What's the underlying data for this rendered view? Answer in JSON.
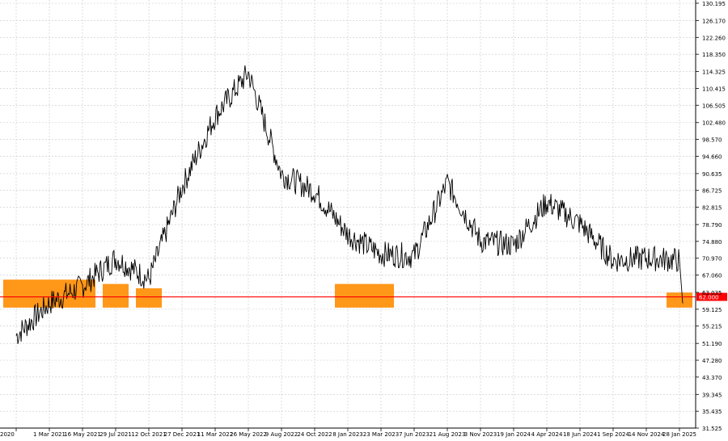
{
  "chart_data": {
    "type": "line",
    "style": "candlestick-price-chart",
    "grid": true,
    "ylim": [
      31.525,
      130.195
    ],
    "yticks": [
      "130.195",
      "126.170",
      "122.260",
      "118.350",
      "114.325",
      "110.415",
      "106.505",
      "102.480",
      "98.570",
      "94.660",
      "90.635",
      "86.725",
      "82.815",
      "78.790",
      "74.880",
      "70.970",
      "67.060",
      "63.035",
      "59.125",
      "55.215",
      "51.190",
      "47.280",
      "43.370",
      "39.345",
      "35.435",
      "31.525"
    ],
    "xticks": [
      "2020",
      "1 Mar 2021",
      "16 May 2021",
      "29 Jul 2021",
      "12 Oct 2021",
      "27 Dec 2021",
      "11 Mar 2022",
      "26 May 2022",
      "9 Aug 2022",
      "24 Oct 2022",
      "8 Jan 2023",
      "23 Mar 2023",
      "7 Jun 2023",
      "21 Aug 2023",
      "3 Nov 2023",
      "19 Jan 2024",
      "4 Apr 2024",
      "18 Jun 2024",
      "1 Sep 2024",
      "14 Nov 2024",
      "28 Jan 2025"
    ],
    "series": [
      {
        "x": [
          "2020",
          "1 Mar 2021",
          "16 May 2021",
          "29 Jul 2021",
          "12 Oct 2021",
          "27 Dec 2021",
          "11 Mar 2022",
          "26 May 2022",
          "9 Aug 2022",
          "24 Oct 2022",
          "8 Jan 2023",
          "23 Mar 2023",
          "7 Jun 2023",
          "21 Aug 2023",
          "3 Nov 2023",
          "19 Jan 2024",
          "4 Apr 2024",
          "18 Jun 2024",
          "1 Sep 2024",
          "14 Nov 2024",
          "28 Jan 2025"
        ],
        "values": [
          53.0,
          60.5,
          64.5,
          71.0,
          66.0,
          87.5,
          104.0,
          114.0,
          90.5,
          86.5,
          76.5,
          72.0,
          71.5,
          88.5,
          75.0,
          74.0,
          84.0,
          79.0,
          70.5,
          71.0,
          70.5
        ]
      }
    ],
    "support_level": {
      "value": 62.0,
      "label": "62.000",
      "color": "#ff0000"
    },
    "highlight_zones": {
      "color": "#ff8c00",
      "zones": [
        {
          "x_start": "2020",
          "x_end": "16 May 2021",
          "y_low": 59.5,
          "y_high": 66.0
        },
        {
          "x_start": "29 Jul 2021",
          "x_end": "29 Jul 2021",
          "y_low": 59.5,
          "y_high": 65.0
        },
        {
          "x_start": "12 Oct 2021",
          "x_end": "12 Oct 2021",
          "y_low": 59.5,
          "y_high": 64.0
        },
        {
          "x_start": "8 Jan 2023",
          "x_end": "23 Mar 2023",
          "y_low": 59.5,
          "y_high": 65.0
        },
        {
          "x_start": "28 Jan 2025",
          "x_end": "28 Jan 2025",
          "y_low": 59.5,
          "y_high": 63.0
        }
      ]
    },
    "colors": {
      "background": "#ffffff",
      "grid": "#c8c8c8",
      "price_line": "#000000",
      "axis": "#000000"
    }
  }
}
